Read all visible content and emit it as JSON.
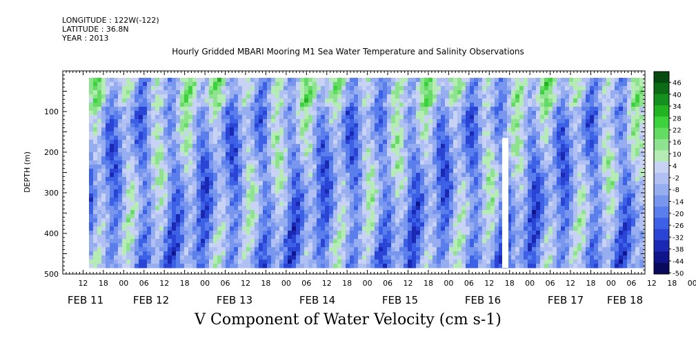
{
  "header": {
    "longitude": "LONGITUDE : 122W(-122)",
    "latitude": "LATITUDE : 36.8N",
    "year": "YEAR : 2013"
  },
  "chart_data": {
    "type": "heatmap",
    "title": "Hourly Gridded MBARI Mooring M1 Sea Water Temperature and Salinity Observations",
    "xlabel": "V Component of Water Velocity (cm s-1)",
    "ylabel": "DEPTH (m)",
    "x_axis": {
      "unit": "hours",
      "start": "FEB 11 06",
      "end": "FEB 18 10",
      "hour_ticks": [
        "12",
        "18",
        "00",
        "06",
        "12",
        "18",
        "00",
        "06",
        "12",
        "18",
        "00",
        "06",
        "12",
        "18",
        "00",
        "06",
        "12",
        "18",
        "00",
        "06",
        "12",
        "18",
        "00",
        "06",
        "12",
        "18",
        "00",
        "06",
        "12",
        "18",
        "00",
        "06"
      ],
      "day_labels": [
        "FEB 11",
        "FEB 12",
        "FEB 13",
        "FEB 14",
        "FEB 15",
        "FEB 16",
        "FEB 17",
        "FEB 18"
      ],
      "data_start": "FEB 11 17",
      "data_end": "FEB 18 09"
    },
    "y_axis": {
      "range": [
        500,
        0
      ],
      "inverted": true,
      "ticks": [
        100,
        200,
        300,
        400,
        500
      ],
      "data_top": 20,
      "data_bottom": 485
    },
    "colorbar": {
      "levels": [
        46,
        40,
        34,
        28,
        22,
        16,
        10,
        4,
        -2,
        -8,
        -14,
        -20,
        -26,
        -32,
        -38,
        -44,
        -50
      ],
      "min": -50,
      "max": 52,
      "colors_low_to_high": [
        "#0a0a5a",
        "#10148a",
        "#1a28b4",
        "#2a44d6",
        "#3c60e6",
        "#5a7eec",
        "#7896ee",
        "#96aef0",
        "#b0c0f2",
        "#c8d2f4",
        "#b4ecb4",
        "#8ee48e",
        "#64dc64",
        "#3cd23c",
        "#22b422",
        "#14901e",
        "#0c6c16",
        "#064a10"
      ]
    },
    "missing_columns": [
      {
        "time": "FEB 16 16",
        "depth_from": 165,
        "depth_to": 485
      }
    ],
    "field_summary": "Alternating positive (green) and negative (blue) V-velocity bands, mostly between -20 and +22 cm s-1"
  }
}
